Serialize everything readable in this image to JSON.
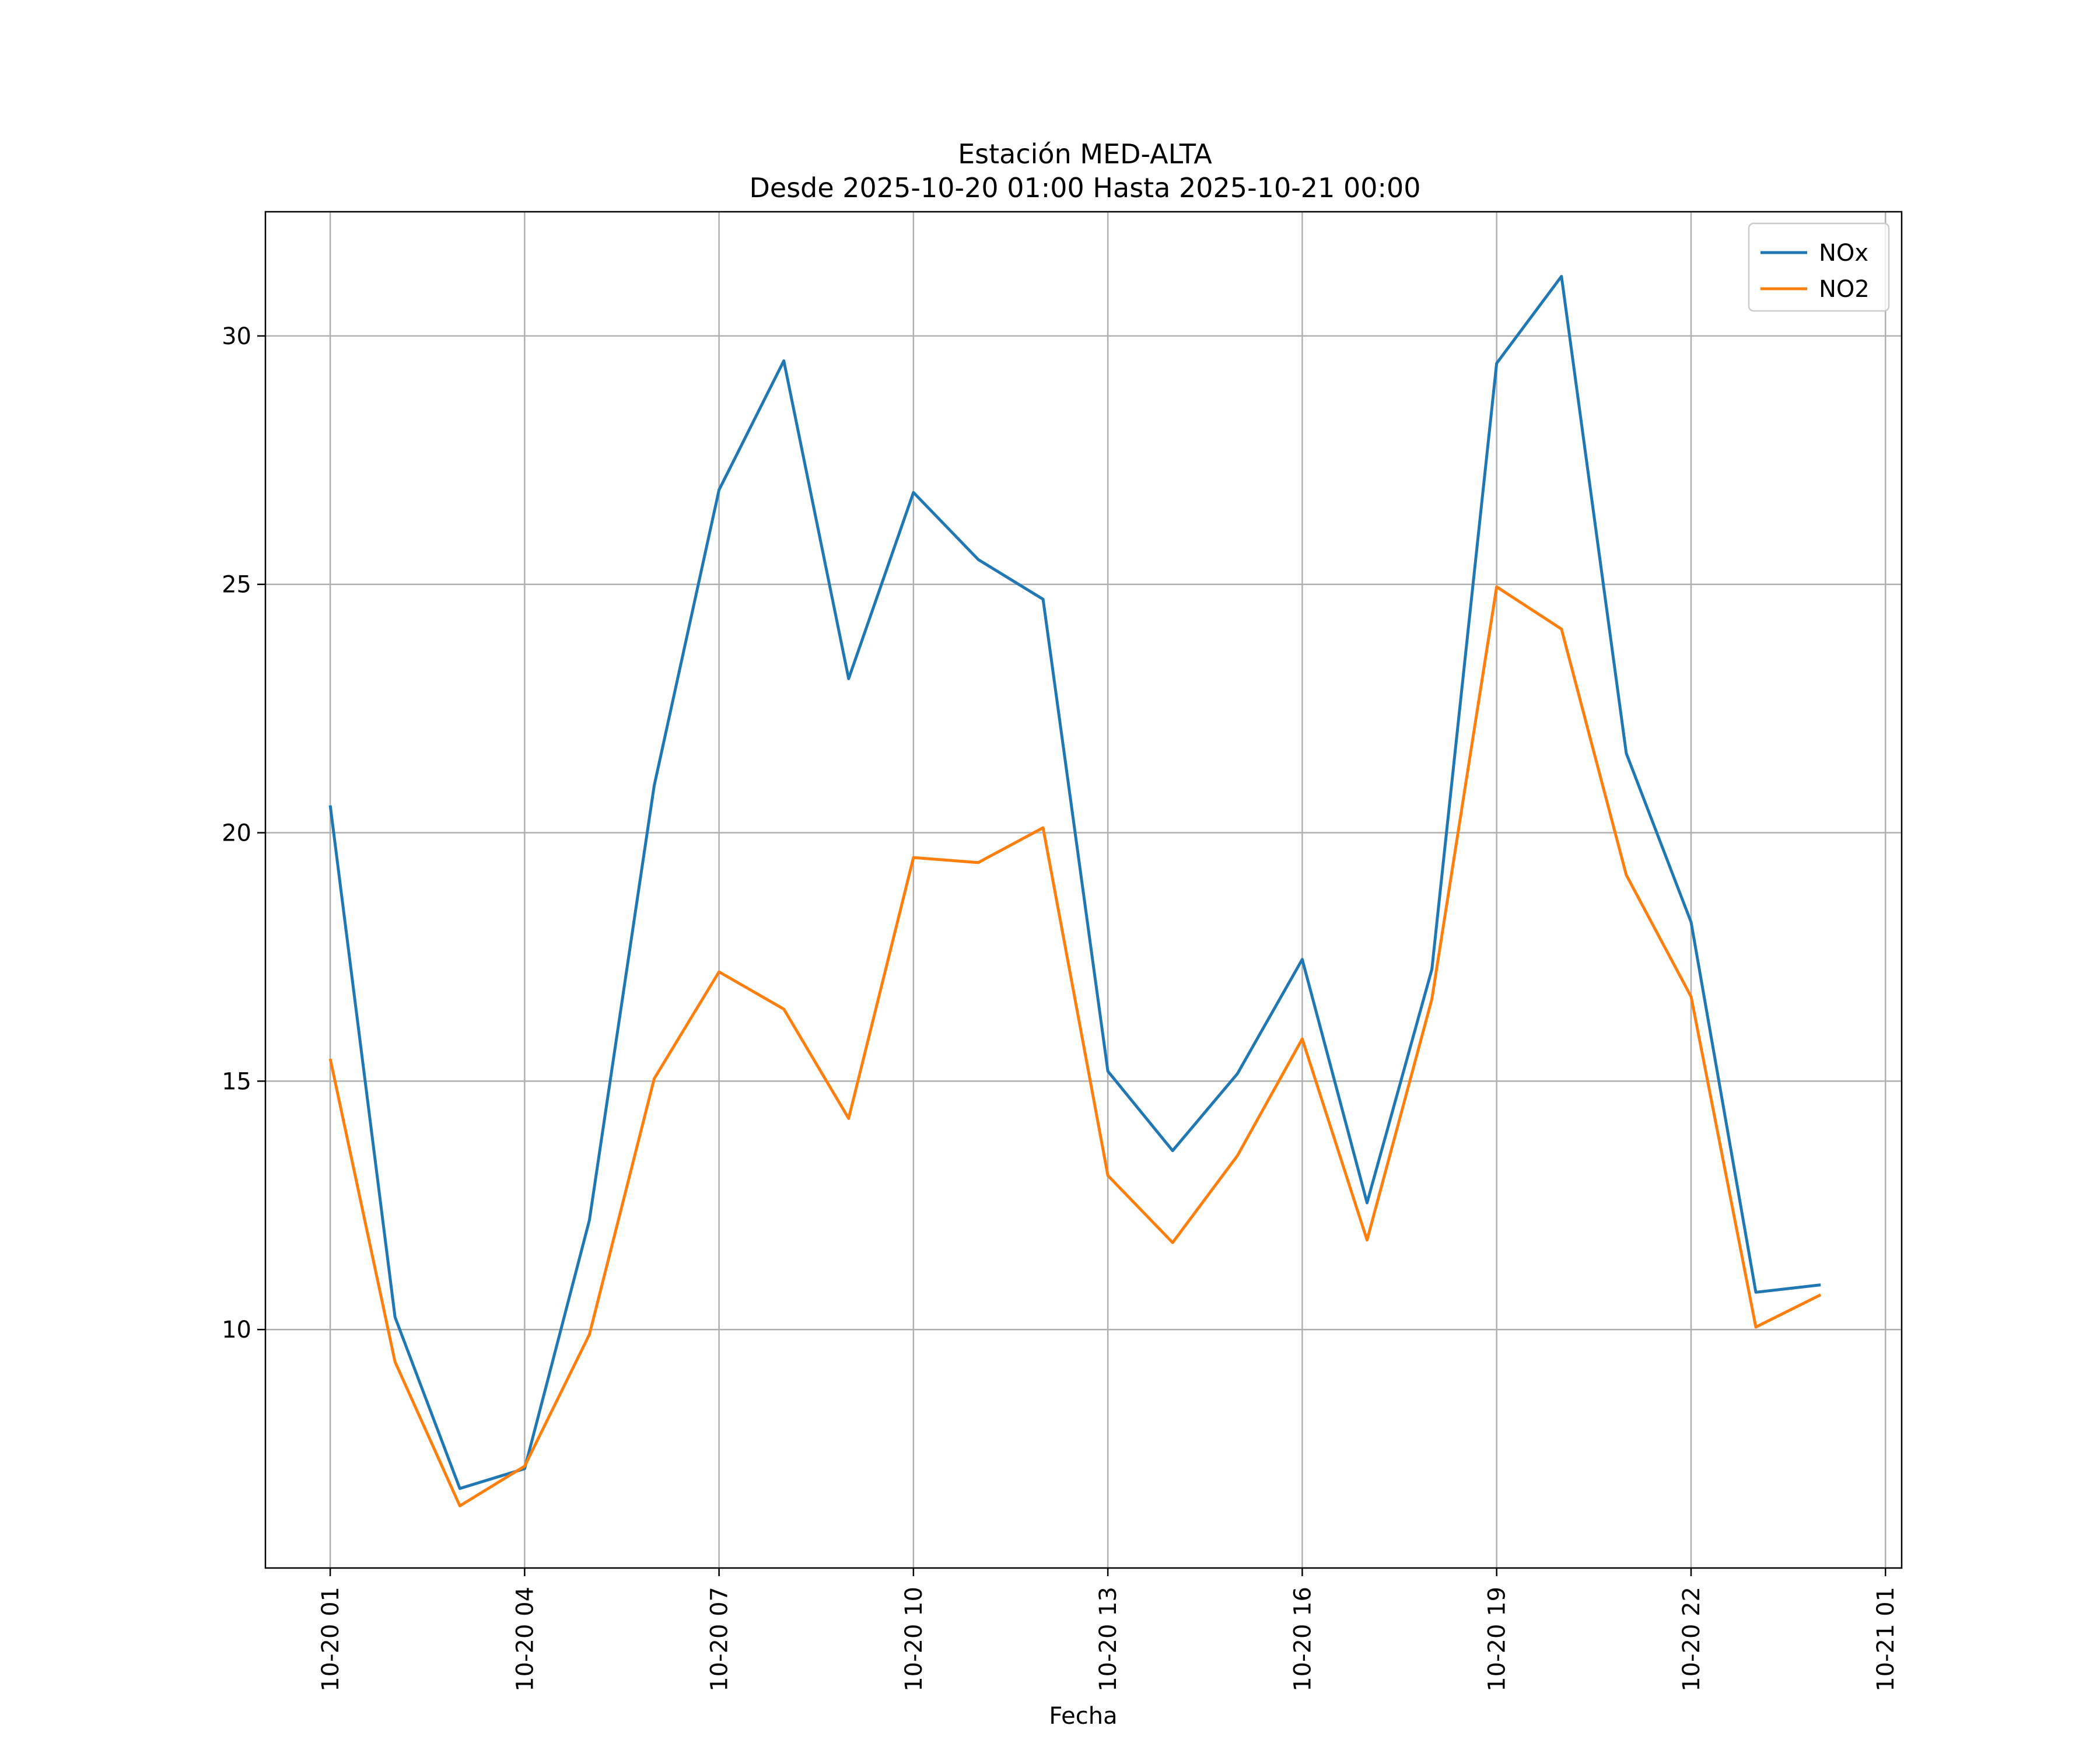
{
  "chart_data": {
    "type": "line",
    "title": "Estación MED-ALTA",
    "subtitle": "Desde 2025-10-20 01:00 Hasta 2025-10-21 00:00",
    "xlabel": "Fecha",
    "ylabel": "",
    "x": [
      "2025-10-20 01:00",
      "2025-10-20 02:00",
      "2025-10-20 03:00",
      "2025-10-20 04:00",
      "2025-10-20 05:00",
      "2025-10-20 06:00",
      "2025-10-20 07:00",
      "2025-10-20 08:00",
      "2025-10-20 09:00",
      "2025-10-20 10:00",
      "2025-10-20 11:00",
      "2025-10-20 12:00",
      "2025-10-20 13:00",
      "2025-10-20 14:00",
      "2025-10-20 15:00",
      "2025-10-20 16:00",
      "2025-10-20 17:00",
      "2025-10-20 18:00",
      "2025-10-20 19:00",
      "2025-10-20 20:00",
      "2025-10-20 21:00",
      "2025-10-20 22:00",
      "2025-10-20 23:00",
      "2025-10-21 00:00"
    ],
    "x_ticks": [
      "10-20 01",
      "10-20 04",
      "10-20 07",
      "10-20 10",
      "10-20 13",
      "10-20 16",
      "10-20 19",
      "10-20 22",
      "10-21 01"
    ],
    "y_ticks": [
      10,
      15,
      20,
      25,
      30
    ],
    "ylim": [
      5.2,
      32.5
    ],
    "xlim": [
      "2025-10-20 00:00",
      "2025-10-21 01:15"
    ],
    "grid": true,
    "legend_position": "top-right",
    "series": [
      {
        "name": "NOx",
        "color": "#1f77b4",
        "values": [
          20.55,
          10.25,
          6.8,
          7.2,
          12.2,
          20.95,
          26.9,
          29.5,
          23.1,
          26.85,
          25.5,
          24.7,
          15.2,
          13.6,
          15.15,
          17.45,
          12.55,
          17.25,
          29.45,
          31.2,
          21.6,
          18.2,
          10.75,
          10.9
        ]
      },
      {
        "name": "NO2",
        "color": "#ff7f0e",
        "values": [
          15.45,
          9.35,
          6.45,
          7.25,
          9.9,
          15.05,
          17.2,
          16.45,
          14.25,
          19.5,
          19.4,
          20.1,
          13.1,
          11.75,
          13.5,
          15.85,
          11.8,
          16.65,
          24.95,
          24.1,
          19.15,
          16.7,
          10.05,
          10.7
        ]
      }
    ]
  }
}
